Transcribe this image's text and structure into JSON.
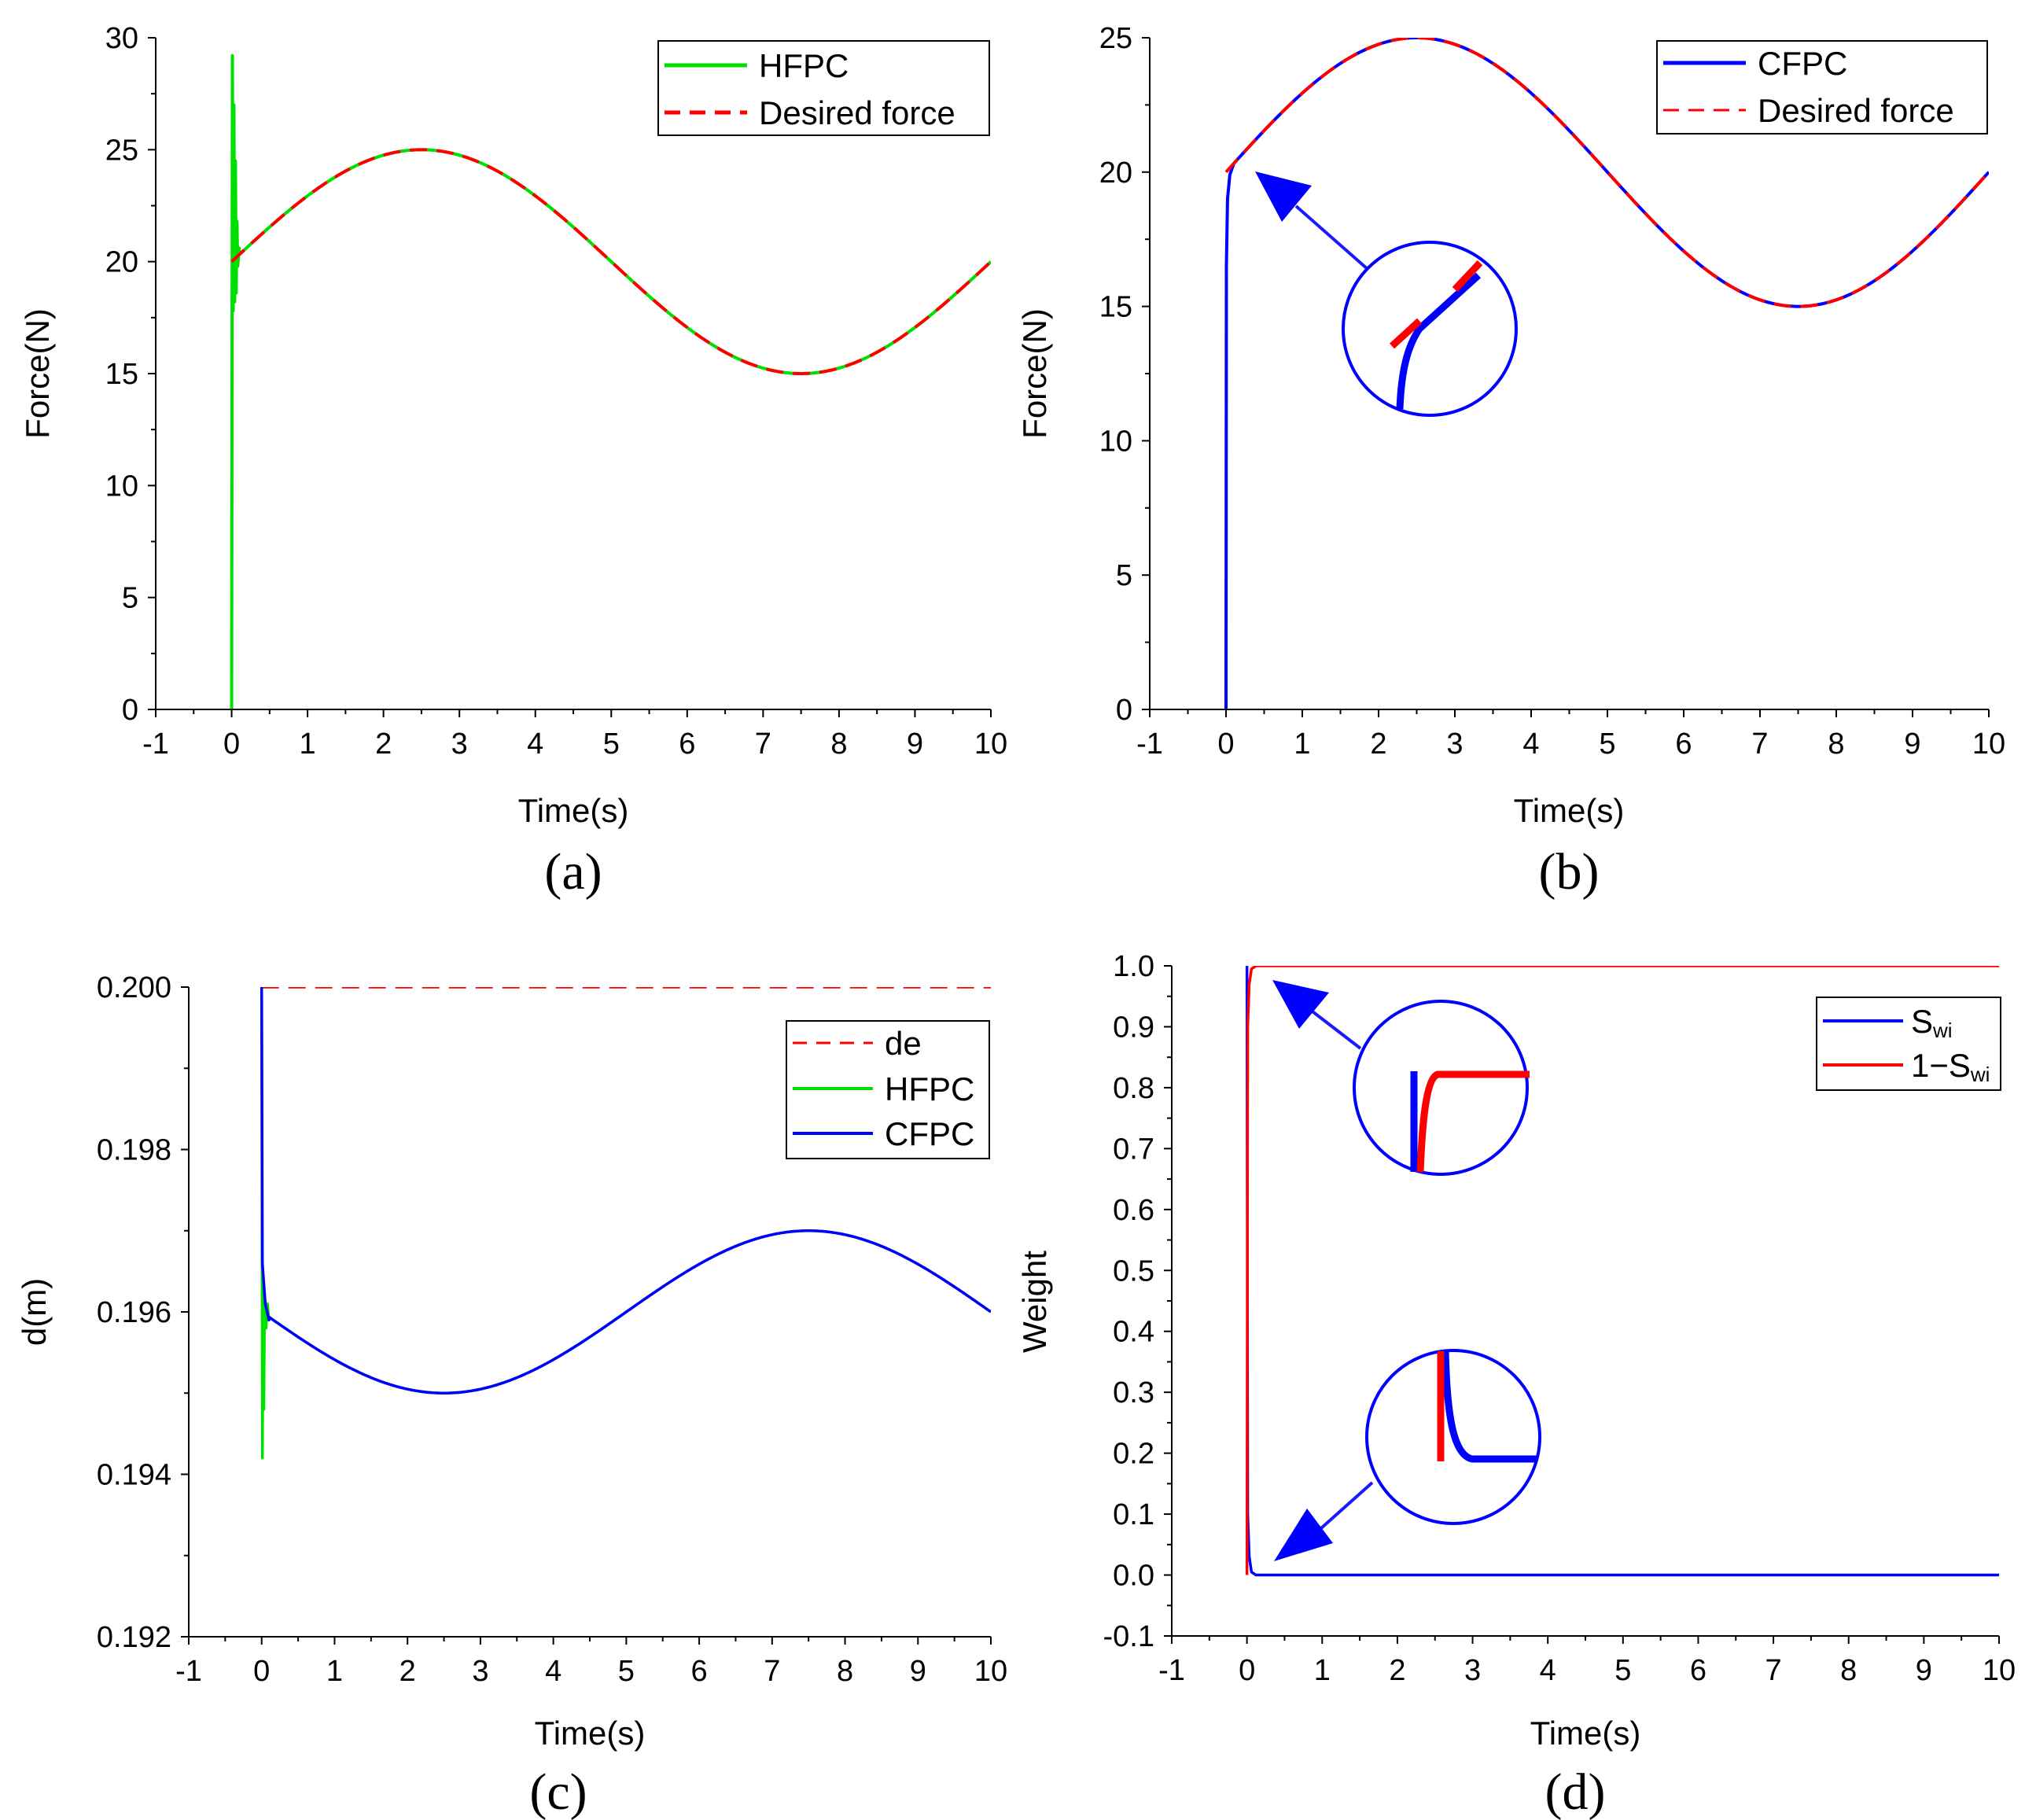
{
  "chart_data": [
    {
      "id": "a",
      "type": "line",
      "panel_label": "(a)",
      "xlabel": "Time(s)",
      "ylabel": "Force(N)",
      "xlim": [
        -1,
        10
      ],
      "ylim": [
        0,
        30
      ],
      "xticks": [
        -1,
        0,
        1,
        2,
        3,
        4,
        5,
        6,
        7,
        8,
        9,
        10
      ],
      "yticks": [
        0,
        5,
        10,
        15,
        20,
        25,
        30
      ],
      "legend_position": "top-right",
      "series": [
        {
          "name": "HFPC",
          "color": "#00e000",
          "style": "solid",
          "formula": "20+5*sin(2*pi*t/10)",
          "start_transient": [
            [
              0,
              0
            ],
            [
              0.01,
              29.2
            ],
            [
              0.02,
              17.8
            ],
            [
              0.03,
              27.0
            ],
            [
              0.04,
              18.2
            ],
            [
              0.05,
              24.5
            ],
            [
              0.06,
              18.6
            ],
            [
              0.07,
              21.8
            ],
            [
              0.08,
              19.8
            ],
            [
              0.1,
              20.6
            ]
          ]
        },
        {
          "name": "Desired force",
          "color": "#ff0000",
          "style": "dashed",
          "formula": "20+5*sin(2*pi*t/10)"
        }
      ]
    },
    {
      "id": "b",
      "type": "line",
      "panel_label": "(b)",
      "xlabel": "Time(s)",
      "ylabel": "Force(N)",
      "xlim": [
        -1,
        10
      ],
      "ylim": [
        0,
        25
      ],
      "xticks": [
        -1,
        0,
        1,
        2,
        3,
        4,
        5,
        6,
        7,
        8,
        9,
        10
      ],
      "yticks": [
        0,
        5,
        10,
        15,
        20,
        25
      ],
      "legend_position": "top-right",
      "series": [
        {
          "name": "CFPC",
          "color": "#0000ff",
          "style": "solid",
          "formula": "20+5*sin(2*pi*t/10)",
          "start_transient": [
            [
              0,
              0
            ],
            [
              0.005,
              16.5
            ],
            [
              0.02,
              19.0
            ],
            [
              0.05,
              19.9
            ],
            [
              0.1,
              20.3
            ]
          ]
        },
        {
          "name": "Desired force",
          "color": "#ff0000",
          "style": "dashed",
          "formula": "20+5*sin(2*pi*t/10)"
        }
      ],
      "inset": "zoom-in circle showing the initial convergence near t=0"
    },
    {
      "id": "c",
      "type": "line",
      "panel_label": "(c)",
      "xlabel": "Time(s)",
      "ylabel": "d(m)",
      "xlim": [
        -1,
        10
      ],
      "ylim": [
        0.192,
        0.2
      ],
      "xticks": [
        -1,
        0,
        1,
        2,
        3,
        4,
        5,
        6,
        7,
        8,
        9,
        10
      ],
      "yticks": [
        0.192,
        0.194,
        0.196,
        0.198,
        0.2
      ],
      "ytick_labels": [
        "0.192",
        "0.194",
        "0.196",
        "0.198",
        "0.200"
      ],
      "legend_position": "top-right",
      "series": [
        {
          "name": "de",
          "color": "#ff0000",
          "style": "dashed",
          "formula": "0.2"
        },
        {
          "name": "HFPC",
          "color": "#00e000",
          "style": "solid",
          "formula": "0.196-0.001*sin(2*pi*t/10)",
          "start_transient": [
            [
              0,
              0.2
            ],
            [
              0.01,
              0.1942
            ],
            [
              0.02,
              0.1964
            ],
            [
              0.03,
              0.1948
            ],
            [
              0.04,
              0.1962
            ],
            [
              0.06,
              0.1958
            ],
            [
              0.08,
              0.1961
            ],
            [
              0.1,
              0.1959
            ]
          ]
        },
        {
          "name": "CFPC",
          "color": "#0000ff",
          "style": "solid",
          "formula": "0.196-0.001*sin(2*pi*t/10)",
          "start_transient": [
            [
              0,
              0.2
            ],
            [
              0.01,
              0.1966
            ],
            [
              0.05,
              0.1961
            ],
            [
              0.1,
              0.1959
            ]
          ]
        }
      ]
    },
    {
      "id": "d",
      "type": "line",
      "panel_label": "(d)",
      "xlabel": "Time(s)",
      "ylabel": "Weight",
      "xlim": [
        -1,
        10
      ],
      "ylim": [
        -0.1,
        1.0
      ],
      "xticks": [
        -1,
        0,
        1,
        2,
        3,
        4,
        5,
        6,
        7,
        8,
        9,
        10
      ],
      "yticks": [
        -0.1,
        0.0,
        0.1,
        0.2,
        0.3,
        0.4,
        0.5,
        0.6,
        0.7,
        0.8,
        0.9,
        1.0
      ],
      "ytick_labels": [
        "-0.1",
        "0.0",
        "0.1",
        "0.2",
        "0.3",
        "0.4",
        "0.5",
        "0.6",
        "0.7",
        "0.8",
        "0.9",
        "1.0"
      ],
      "legend_position": "top-right",
      "series": [
        {
          "name": "S",
          "subscript": "wi",
          "color": "#0000ff",
          "style": "solid",
          "points": [
            [
              0,
              1.0
            ],
            [
              0.01,
              0.1
            ],
            [
              0.03,
              0.03
            ],
            [
              0.06,
              0.005
            ],
            [
              0.12,
              0.0
            ],
            [
              10,
              0.0
            ]
          ]
        },
        {
          "name": "1−S",
          "subscript": "wi",
          "color": "#ff0000",
          "style": "solid",
          "points": [
            [
              0,
              0.0
            ],
            [
              0.01,
              0.9
            ],
            [
              0.03,
              0.97
            ],
            [
              0.06,
              0.995
            ],
            [
              0.12,
              1.0
            ],
            [
              10,
              1.0
            ]
          ]
        }
      ],
      "insets": [
        "zoom-in circle near the top transition",
        "zoom-in circle near the bottom transition"
      ]
    }
  ]
}
